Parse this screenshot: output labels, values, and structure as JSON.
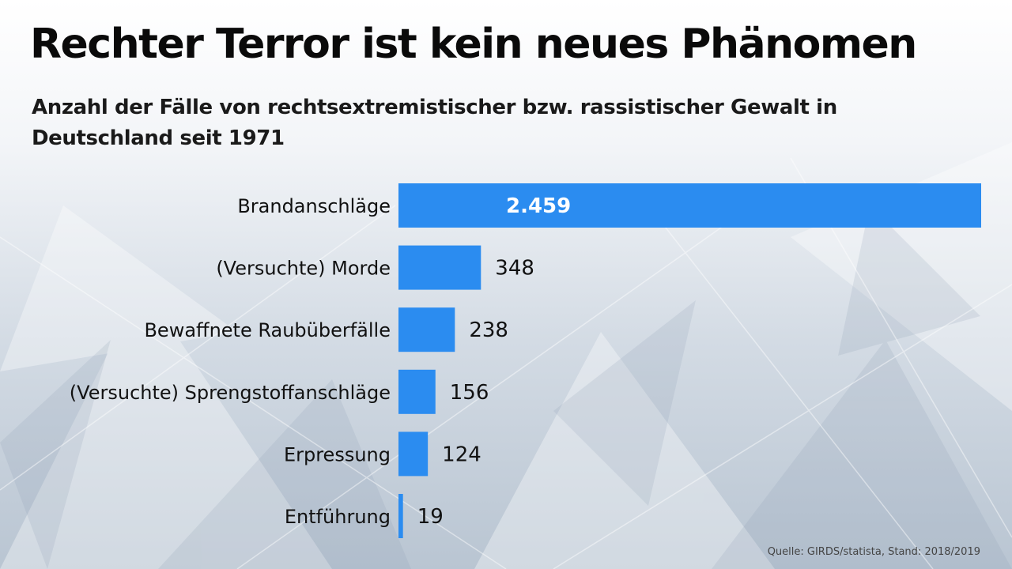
{
  "title": "Rechter Terror ist kein neues Phänomen",
  "subtitle": "Anzahl der Fälle von rechtsextremistischer bzw. rassistischer Gewalt in Deutschland seit 1971",
  "source": "Quelle: GIRDS/statista, Stand: 2018/2019",
  "colors": {
    "bar": "#2b8cf0",
    "background": "#dfe5ec"
  },
  "chart_data": {
    "type": "bar",
    "orientation": "horizontal",
    "title": "Rechter Terror ist kein neues Phänomen",
    "subtitle": "Anzahl der Fälle von rechtsextremistischer bzw. rassistischer Gewalt in Deutschland seit 1971",
    "categories": [
      "Brandanschläge",
      "(Versuchte) Morde",
      "Bewaffnete Raubüberfälle",
      "(Versuchte) Sprengstoffanschläge",
      "Erpressung",
      "Entführung"
    ],
    "values": [
      2459,
      348,
      238,
      156,
      124,
      19
    ],
    "value_labels": [
      "2.459",
      "348",
      "238",
      "156",
      "124",
      "19"
    ],
    "xlabel": "",
    "ylabel": "",
    "xlim": [
      0,
      2459
    ],
    "grid": false,
    "legend": "none"
  }
}
